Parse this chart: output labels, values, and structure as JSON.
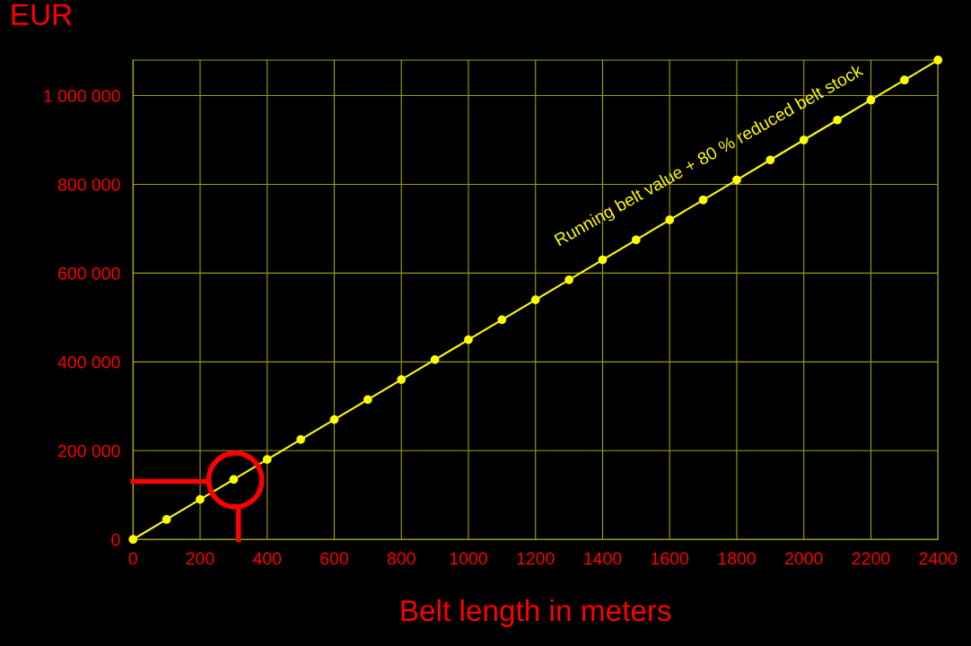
{
  "chart_data": {
    "type": "line",
    "xlabel": "Belt length in meters",
    "ylabel": "EUR",
    "x": [
      0,
      100,
      200,
      300,
      400,
      500,
      600,
      700,
      800,
      900,
      1000,
      1100,
      1200,
      1300,
      1400,
      1500,
      1600,
      1700,
      1800,
      1900,
      2000,
      2100,
      2200,
      2300,
      2400
    ],
    "series": [
      {
        "name": "Running belt value + 80 % reduced belt stock",
        "color": "#ffff00",
        "values": [
          0,
          45000,
          90000,
          135000,
          180000,
          225000,
          270000,
          315000,
          360000,
          405000,
          450000,
          495000,
          540000,
          585000,
          630000,
          675000,
          720000,
          765000,
          810000,
          855000,
          900000,
          945000,
          990000,
          1035000,
          1080000
        ]
      }
    ],
    "xlim": [
      0,
      2400
    ],
    "xticks": [
      0,
      200,
      400,
      600,
      800,
      1000,
      1200,
      1400,
      1600,
      1800,
      2000,
      2200,
      2400
    ],
    "ylim": [
      0,
      1080000
    ],
    "yticks": [
      {
        "value": 0,
        "label": "0"
      },
      {
        "value": 200000,
        "label": "200 000"
      },
      {
        "value": 400000,
        "label": "400 000"
      },
      {
        "value": 600000,
        "label": "600 000"
      },
      {
        "value": 800000,
        "label": "800 000"
      },
      {
        "value": 1000000,
        "label": "1 000 000"
      }
    ],
    "grid": true,
    "marker": "circle",
    "line_style": "solid",
    "legend": false
  }
}
